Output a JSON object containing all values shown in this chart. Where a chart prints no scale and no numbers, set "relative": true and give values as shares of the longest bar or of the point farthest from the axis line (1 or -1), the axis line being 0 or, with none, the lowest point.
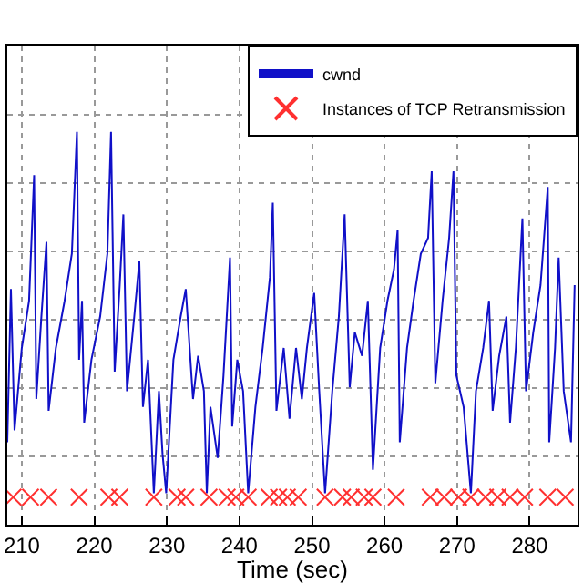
{
  "chart_data": {
    "type": "line",
    "xlabel": "Time (sec)",
    "relative": true,
    "grid": true,
    "legend": "top right",
    "xlim": [
      208,
      286.6
    ],
    "xticks": [
      210,
      220,
      230,
      240,
      250,
      260,
      270,
      280
    ],
    "series": [
      {
        "name": "cwnd",
        "color": "#1010c8",
        "marker": "none",
        "line_style": "solid",
        "x": [
          208.0,
          208.5,
          209.0,
          210.0,
          211.0,
          211.7,
          212.0,
          212.7,
          213.4,
          213.7,
          214.7,
          215.9,
          216.9,
          217.6,
          217.9,
          218.3,
          218.6,
          219.6,
          220.8,
          221.8,
          222.3,
          222.8,
          223.5,
          224.0,
          224.5,
          225.5,
          226.2,
          226.7,
          227.4,
          228.2,
          228.9,
          229.4,
          229.9,
          230.9,
          231.9,
          232.6,
          233.6,
          234.3,
          235.1,
          235.5,
          236.0,
          237.0,
          237.8,
          238.7,
          239.0,
          239.7,
          240.5,
          241.2,
          242.2,
          243.2,
          244.2,
          244.6,
          245.1,
          246.1,
          246.9,
          247.8,
          248.6,
          249.3,
          250.3,
          251.0,
          251.8,
          252.8,
          253.7,
          254.5,
          255.2,
          255.9,
          256.9,
          257.7,
          258.4,
          259.4,
          260.4,
          261.3,
          261.8,
          262.1,
          263.1,
          264.0,
          265.0,
          266.0,
          266.5,
          267.0,
          268.0,
          268.9,
          269.5,
          269.9,
          270.9,
          271.9,
          272.6,
          273.6,
          274.4,
          274.9,
          275.8,
          276.8,
          277.3,
          278.1,
          279.0,
          279.5,
          280.5,
          281.5,
          282.5,
          282.7,
          283.5,
          284.0,
          284.7,
          285.7,
          286.2
        ],
        "values": [
          0.21,
          0.6,
          0.24,
          0.45,
          0.57,
          0.89,
          0.32,
          0.53,
          0.72,
          0.29,
          0.45,
          0.57,
          0.69,
          1.0,
          0.42,
          0.57,
          0.26,
          0.42,
          0.53,
          0.69,
          1.0,
          0.39,
          0.61,
          0.79,
          0.34,
          0.53,
          0.67,
          0.3,
          0.42,
          0.08,
          0.34,
          0.18,
          0.08,
          0.42,
          0.53,
          0.6,
          0.32,
          0.43,
          0.34,
          0.08,
          0.3,
          0.17,
          0.38,
          0.68,
          0.25,
          0.42,
          0.34,
          0.08,
          0.3,
          0.45,
          0.63,
          0.82,
          0.29,
          0.45,
          0.27,
          0.45,
          0.32,
          0.45,
          0.59,
          0.34,
          0.08,
          0.34,
          0.53,
          0.79,
          0.35,
          0.49,
          0.43,
          0.57,
          0.14,
          0.45,
          0.57,
          0.65,
          0.75,
          0.21,
          0.45,
          0.57,
          0.69,
          0.73,
          0.9,
          0.36,
          0.57,
          0.73,
          0.9,
          0.38,
          0.3,
          0.08,
          0.34,
          0.45,
          0.57,
          0.29,
          0.43,
          0.53,
          0.26,
          0.45,
          0.78,
          0.34,
          0.49,
          0.61,
          0.86,
          0.21,
          0.45,
          0.68,
          0.34,
          0.21,
          0.61
        ]
      },
      {
        "name": "Instances of TCP Retransmission",
        "type": "scatter",
        "color": "#ff3030",
        "marker": "cross",
        "x": [
          208.8,
          211.2,
          213.7,
          217.9,
          222.0,
          223.5,
          228.2,
          231.4,
          232.6,
          235.8,
          238.3,
          239.5,
          241.2,
          244.1,
          245.4,
          246.6,
          248.1,
          251.8,
          254.2,
          255.4,
          257.2,
          258.4,
          261.6,
          266.3,
          268.2,
          270.2,
          271.9,
          273.9,
          275.6,
          277.3,
          279.3,
          282.5,
          284.9
        ],
        "values": [
          0.07,
          0.07,
          0.07,
          0.07,
          0.07,
          0.07,
          0.07,
          0.07,
          0.07,
          0.07,
          0.07,
          0.07,
          0.07,
          0.07,
          0.07,
          0.07,
          0.07,
          0.07,
          0.07,
          0.07,
          0.07,
          0.07,
          0.07,
          0.07,
          0.07,
          0.07,
          0.07,
          0.07,
          0.07,
          0.07,
          0.07,
          0.07,
          0.07
        ]
      }
    ]
  }
}
